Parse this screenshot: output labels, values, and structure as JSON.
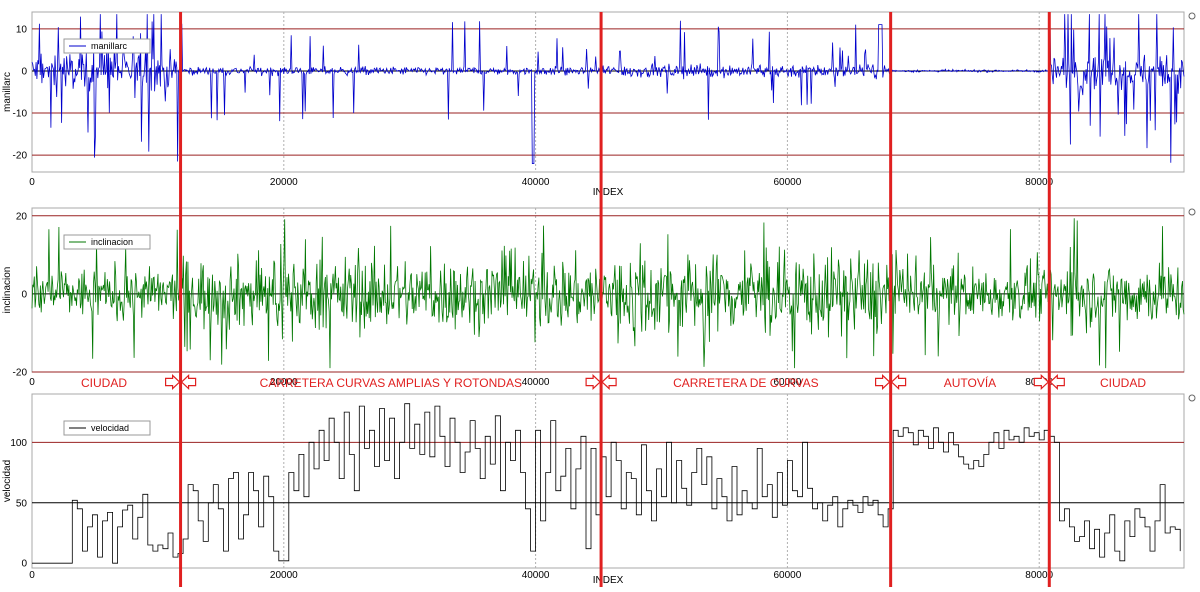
{
  "chart_data": [
    {
      "type": "line",
      "id": "manillarc",
      "series": [
        {
          "name": "manillarc",
          "color": "#0000cc"
        }
      ],
      "ylabel": "manillarc",
      "xlabel": "INDEX",
      "ylim": [
        -24,
        14
      ],
      "xlim": [
        0,
        91500
      ],
      "yticks": [
        10,
        0,
        -10,
        -20
      ],
      "xticks": [
        0,
        20000,
        40000,
        60000,
        80000
      ],
      "hlines": [
        {
          "y": 10,
          "color": "#9a2222"
        },
        {
          "y": 0,
          "color": "#000000"
        },
        {
          "y": -10,
          "color": "#9a2222"
        },
        {
          "y": -20,
          "color": "#9a2222"
        }
      ],
      "grid_x": true,
      "legend": "top-left"
    },
    {
      "type": "line",
      "id": "inclinacion",
      "series": [
        {
          "name": "inclinacion",
          "color": "#007700"
        }
      ],
      "ylabel": "inclinacion",
      "xlabel": "",
      "ylim": [
        -20,
        22
      ],
      "xlim": [
        0,
        91500
      ],
      "yticks": [
        20,
        0,
        -20
      ],
      "xticks": [
        0,
        20000,
        40000,
        60000,
        80000
      ],
      "hlines": [
        {
          "y": 20,
          "color": "#9a2222"
        },
        {
          "y": 0,
          "color": "#000000"
        },
        {
          "y": -20,
          "color": "#9a2222"
        }
      ],
      "grid_x": true,
      "legend": "top-left"
    },
    {
      "type": "line",
      "id": "velocidad",
      "series": [
        {
          "name": "velocidad",
          "color": "#000000",
          "x": [
            0,
            3000,
            3200,
            3600,
            4000,
            4400,
            4800,
            5200,
            5600,
            6000,
            6400,
            6800,
            7200,
            7600,
            8000,
            8400,
            8800,
            9200,
            9600,
            10000,
            10400,
            10800,
            11200,
            11600,
            12000,
            12400,
            12800,
            13200,
            13600,
            14000,
            14400,
            14800,
            15200,
            15600,
            16000,
            16400,
            16800,
            17200,
            17600,
            18000,
            18400,
            18800,
            19200,
            19600,
            20000,
            20400,
            20800,
            21200,
            21600,
            22000,
            22400,
            22800,
            23200,
            23600,
            24000,
            24400,
            24800,
            25200,
            25600,
            26000,
            26400,
            26800,
            27200,
            27600,
            28000,
            28400,
            28800,
            29200,
            29600,
            30000,
            30400,
            30800,
            31200,
            31600,
            32000,
            32400,
            32800,
            33200,
            33600,
            34000,
            34400,
            34800,
            35200,
            35600,
            36000,
            36400,
            36800,
            37200,
            37600,
            38000,
            38400,
            38800,
            39200,
            39600,
            40000,
            40400,
            40800,
            41200,
            41600,
            42000,
            42400,
            42800,
            43200,
            43600,
            44000,
            44400,
            44800,
            45200,
            45600,
            46000,
            46400,
            46800,
            47200,
            47600,
            48000,
            48400,
            48800,
            49200,
            49600,
            50000,
            50400,
            50800,
            51200,
            51600,
            52000,
            52400,
            52800,
            53200,
            53600,
            54000,
            54400,
            54800,
            55200,
            55600,
            56000,
            56400,
            56800,
            57200,
            57600,
            58000,
            58400,
            58800,
            59200,
            59600,
            60000,
            60400,
            60800,
            61200,
            61600,
            62000,
            62400,
            62800,
            63200,
            63600,
            64000,
            64400,
            64800,
            65200,
            65600,
            66000,
            66400,
            66800,
            67200,
            67600,
            68000,
            68400,
            68800,
            69200,
            69600,
            70000,
            70400,
            70800,
            71200,
            71600,
            72000,
            72400,
            72800,
            73200,
            73600,
            74000,
            74400,
            74800,
            75200,
            75600,
            76000,
            76400,
            76800,
            77200,
            77600,
            78000,
            78400,
            78800,
            79200,
            79600,
            80000,
            80400,
            80800,
            81200,
            81600,
            82000,
            82400,
            82800,
            83200,
            83600,
            84000,
            84400,
            84800,
            85200,
            85600,
            86000,
            86400,
            86800,
            87200,
            87600,
            88000,
            88400,
            88800,
            89200,
            89600,
            90000,
            90400,
            90800,
            91200
          ],
          "y": [
            0,
            0,
            52,
            45,
            10,
            30,
            40,
            5,
            35,
            42,
            0,
            30,
            44,
            48,
            20,
            38,
            57,
            15,
            10,
            15,
            12,
            25,
            5,
            8,
            20,
            65,
            60,
            35,
            18,
            50,
            65,
            45,
            10,
            70,
            75,
            20,
            40,
            75,
            60,
            30,
            72,
            55,
            10,
            2,
            2,
            75,
            60,
            90,
            55,
            100,
            78,
            110,
            85,
            120,
            100,
            70,
            125,
            90,
            60,
            130,
            95,
            110,
            80,
            128,
            85,
            120,
            70,
            100,
            132,
            95,
            115,
            90,
            125,
            88,
            130,
            105,
            80,
            120,
            100,
            75,
            92,
            118,
            95,
            70,
            105,
            82,
            122,
            60,
            100,
            85,
            110,
            75,
            45,
            10,
            110,
            35,
            75,
            118,
            60,
            72,
            95,
            45,
            78,
            105,
            12,
            95,
            40,
            88,
            55,
            100,
            85,
            45,
            75,
            70,
            40,
            98,
            60,
            35,
            78,
            55,
            100,
            50,
            85,
            62,
            48,
            75,
            95,
            65,
            88,
            45,
            70,
            55,
            35,
            80,
            40,
            60,
            50,
            45,
            95,
            55,
            65,
            38,
            75,
            48,
            85,
            60,
            55,
            100,
            62,
            45,
            50,
            35,
            48,
            55,
            30,
            45,
            52,
            48,
            42,
            55,
            48,
            52,
            40,
            30,
            45,
            110,
            105,
            112,
            108,
            98,
            110,
            105,
            95,
            112,
            100,
            92,
            108,
            98,
            88,
            82,
            78,
            85,
            80,
            90,
            100,
            108,
            95,
            110,
            102,
            105,
            100,
            112,
            105,
            108,
            102,
            110,
            105,
            100,
            35,
            45,
            30,
            18,
            22,
            35,
            12,
            28,
            5,
            25,
            40,
            10,
            2,
            35,
            22,
            45,
            38,
            30,
            10,
            35,
            65,
            25,
            30,
            28,
            10
          ],
          "xlim": [
            0,
            91500
          ]
        }
      ],
      "ylabel": "velocidad",
      "xlabel": "INDEX",
      "ylim": [
        -4,
        140
      ],
      "xlim": [
        0,
        91500
      ],
      "yticks": [
        100,
        50,
        0
      ],
      "xticks": [
        0,
        20000,
        40000,
        60000,
        80000
      ],
      "hlines": [
        {
          "y": 100,
          "color": "#9a2222"
        },
        {
          "y": 50,
          "color": "#000000"
        }
      ],
      "grid_x": true,
      "legend": "top-left"
    }
  ],
  "segments": {
    "boundaries": [
      11800,
      45200,
      68200,
      80800
    ],
    "labels": [
      "CIUDAD",
      "CARRETERA CURVAS AMPLIAS Y ROTONDAS",
      "CARRETERA DE CURVAS",
      "AUTOVÍA",
      "CIUDAD"
    ],
    "color": "#e02020"
  }
}
